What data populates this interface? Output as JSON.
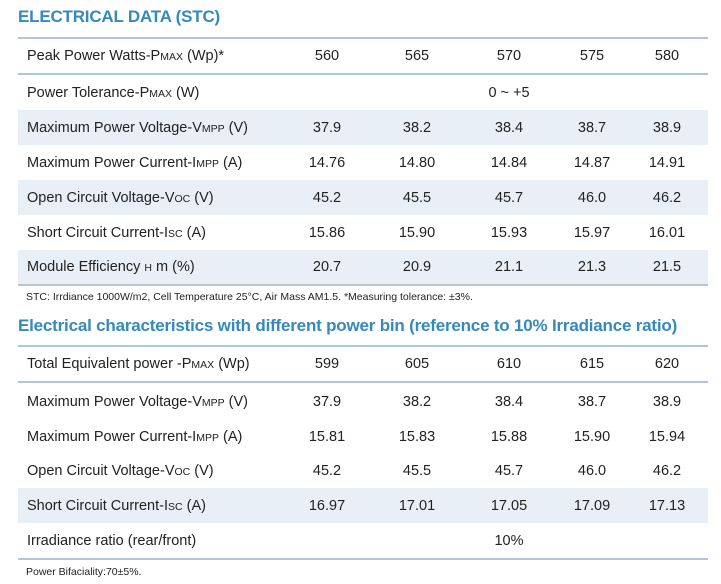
{
  "stc": {
    "title": "ELECTRICAL DATA (STC)",
    "rows": [
      {
        "pre": "Peak Power Watts-P",
        "sub": "max",
        "post": " (Wp)*",
        "values": [
          "560",
          "565",
          "570",
          "575",
          "580"
        ]
      },
      {
        "pre": "Power Tolerance-P",
        "sub": "max",
        "post": " (W)",
        "span": "0 ~ +5"
      },
      {
        "pre": "Maximum Power Voltage-V",
        "sub": "mpp",
        "post": " (V)",
        "values": [
          "37.9",
          "38.2",
          "38.4",
          "38.7",
          "38.9"
        ]
      },
      {
        "pre": "Maximum Power Current-I",
        "sub": "mpp",
        "post": " (A)",
        "values": [
          "14.76",
          "14.80",
          "14.84",
          "14.87",
          "14.91"
        ]
      },
      {
        "pre": "Open Circuit Voltage-V",
        "sub": "oc",
        "post": " (V)",
        "values": [
          "45.2",
          "45.5",
          "45.7",
          "46.0",
          "46.2"
        ]
      },
      {
        "pre": "Short Circuit Current-I",
        "sub": "sc",
        "post": " (A)",
        "values": [
          "15.86",
          "15.90",
          "15.93",
          "15.97",
          "16.01"
        ]
      },
      {
        "pre": "Module Efficiency ",
        "sub": "η",
        "post": " m (%)",
        "values": [
          "20.7",
          "20.9",
          "21.1",
          "21.3",
          "21.5"
        ]
      }
    ],
    "note": "STC: Irrdiance 1000W/m2, Cell Temperature 25°C, Air Mass AM1.5.   *Measuring tolerance: ±3%."
  },
  "bin": {
    "title": "Electrical characteristics with different power bin (reference to 10%  Irradiance ratio)",
    "rows": [
      {
        "pre": "Total Equivalent power -P",
        "sub": "max",
        "post": " (Wp)",
        "values": [
          "599",
          "605",
          "610",
          "615",
          "620"
        ]
      },
      {
        "pre": "Maximum Power Voltage-V",
        "sub": "mpp",
        "post": "  (V)",
        "values": [
          "37.9",
          "38.2",
          "38.4",
          "38.7",
          "38.9"
        ]
      },
      {
        "pre": "Maximum Power Current-I",
        "sub": "mpp",
        "post": " (A)",
        "values": [
          "15.81",
          "15.83",
          "15.88",
          "15.90",
          "15.94"
        ]
      },
      {
        "pre": "Open Circuit Voltage-V",
        "sub": "oc",
        "post": "  (V)",
        "values": [
          "45.2",
          "45.5",
          "45.7",
          "46.0",
          "46.2"
        ]
      },
      {
        "pre": "Short Circuit Current-I",
        "sub": "sc",
        "post": " (A)",
        "values": [
          "16.97",
          "17.01",
          "17.05",
          "17.09",
          "17.13"
        ]
      },
      {
        "pre": "Irradiance ratio (rear/front)",
        "sub": "",
        "post": "",
        "span": "10%"
      }
    ],
    "note": "Power Bifaciality:70±5%."
  }
}
